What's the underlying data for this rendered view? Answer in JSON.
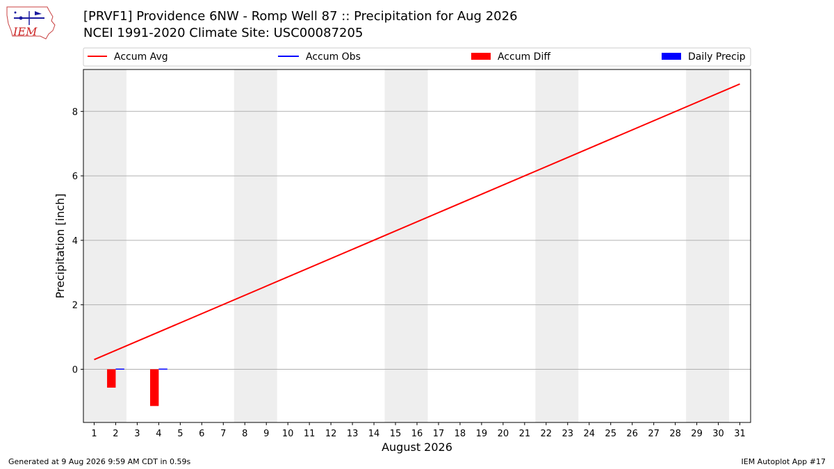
{
  "header": {
    "title_line1": "[PRVF1] Providence 6NW - Romp Well 87 :: Precipitation for Aug 2026",
    "title_line2": "NCEI 1991-2020 Climate Site: USC00087205",
    "logo_text": "IEM"
  },
  "footer": {
    "generated": "Generated at 9 Aug 2026 9:59 AM CDT in 0.59s",
    "app": "IEM Autoplot App #17"
  },
  "chart_data": {
    "type": "line",
    "xlabel": "August 2026",
    "ylabel": "Precipitation [inch]",
    "ylim": [
      -1.65,
      9.3
    ],
    "xlim": [
      0.5,
      31.5
    ],
    "yticks": [
      0,
      2,
      4,
      6,
      8
    ],
    "x": [
      1,
      2,
      3,
      4,
      5,
      6,
      7,
      8,
      9,
      10,
      11,
      12,
      13,
      14,
      15,
      16,
      17,
      18,
      19,
      20,
      21,
      22,
      23,
      24,
      25,
      26,
      27,
      28,
      29,
      30,
      31
    ],
    "grid": "horizontal",
    "legend_position": "top",
    "weekend_shading": [
      [
        1,
        2
      ],
      [
        8,
        9
      ],
      [
        15,
        16
      ],
      [
        22,
        23
      ],
      [
        29,
        30
      ]
    ],
    "legend": [
      "Accum Avg",
      "Accum Obs",
      "Accum Diff",
      "Daily Precip"
    ],
    "series": [
      {
        "name": "Accum Avg",
        "kind": "line",
        "color": "#ff0000",
        "x": [
          1,
          31
        ],
        "values": [
          0.3,
          8.85
        ]
      },
      {
        "name": "Accum Obs",
        "kind": "line",
        "color": "#0000ff",
        "x": [],
        "values": []
      },
      {
        "name": "Accum Diff",
        "kind": "bar",
        "color": "#ff0000",
        "x": [
          2,
          4
        ],
        "values": [
          -0.57,
          -1.14
        ]
      },
      {
        "name": "Daily Precip",
        "kind": "bar",
        "color": "#0000ff",
        "x": [
          2,
          4
        ],
        "values": [
          0.02,
          0.02
        ]
      }
    ],
    "colors": {
      "shade": "#eeeeee",
      "grid": "#b0b0b0"
    }
  }
}
